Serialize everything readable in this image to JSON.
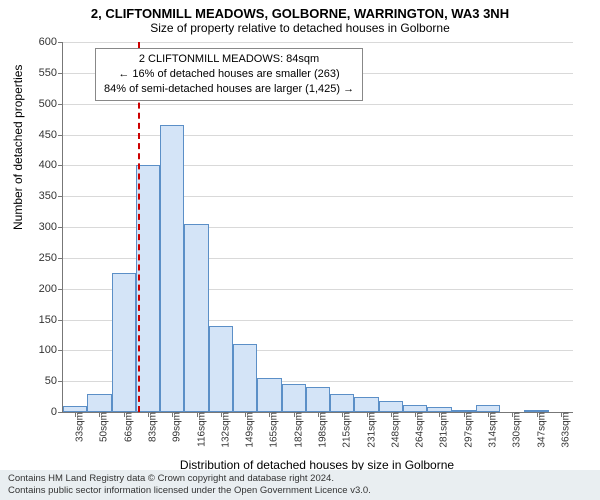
{
  "titles": {
    "main": "2, CLIFTONMILL MEADOWS, GOLBORNE, WARRINGTON, WA3 3NH",
    "sub": "Size of property relative to detached houses in Golborne"
  },
  "ylabel": "Number of detached properties",
  "xlabel": "Distribution of detached houses by size in Golborne",
  "chart": {
    "type": "histogram",
    "ylim": [
      0,
      600
    ],
    "ytick_step": 50,
    "background_color": "#ffffff",
    "grid_color": "#d9d9d9",
    "axis_color": "#777777",
    "bar_fill": "#d4e4f7",
    "bar_border": "#5b8fc7",
    "bar_width_ratio": 1.0,
    "categories": [
      "33sqm",
      "50sqm",
      "66sqm",
      "83sqm",
      "99sqm",
      "116sqm",
      "132sqm",
      "149sqm",
      "165sqm",
      "182sqm",
      "198sqm",
      "215sqm",
      "231sqm",
      "248sqm",
      "264sqm",
      "281sqm",
      "297sqm",
      "314sqm",
      "330sqm",
      "347sqm",
      "363sqm"
    ],
    "values": [
      10,
      30,
      225,
      400,
      465,
      305,
      140,
      110,
      55,
      45,
      40,
      30,
      25,
      18,
      12,
      8,
      2,
      12,
      0,
      2,
      0
    ]
  },
  "reference": {
    "color": "#cc0000",
    "index_position": 3.08,
    "dash": "4,4"
  },
  "annotation": {
    "lines": [
      "2 CLIFTONMILL MEADOWS: 84sqm",
      "← 16% of detached houses are smaller (263)",
      "84% of semi-detached houses are larger (1,425) →"
    ],
    "border_color": "#888888",
    "bg": "#ffffff"
  },
  "footer": {
    "line1": "Contains HM Land Registry data © Crown copyright and database right 2024.",
    "line2": "Contains public sector information licensed under the Open Government Licence v3.0."
  },
  "fonts": {
    "title_fontsize": 13,
    "subtitle_fontsize": 12,
    "axis_label_fontsize": 12,
    "tick_fontsize": 11,
    "annotation_fontsize": 11,
    "footer_fontsize": 9.5
  }
}
